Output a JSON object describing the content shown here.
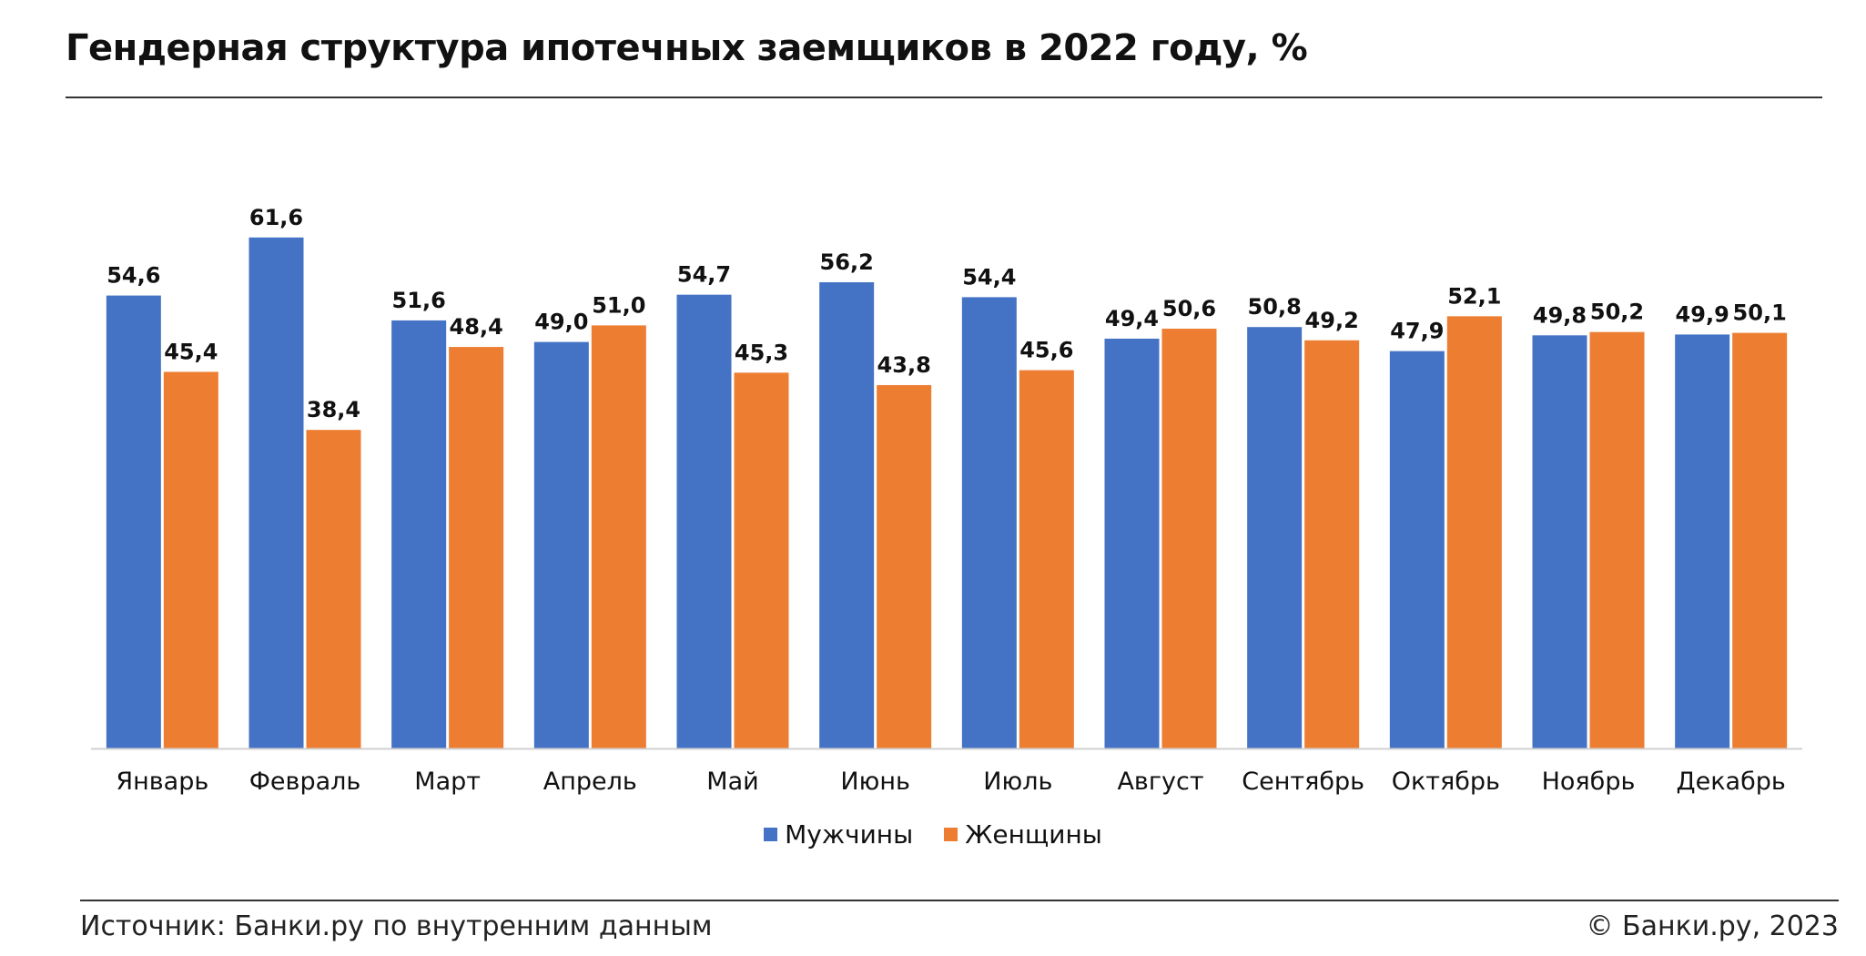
{
  "title": "Гендерная структура ипотечных заемщиков в 2022 году, %",
  "source": "Источник: Банки.ру по внутренним данным",
  "copyright": "© Банки.ру, 2023",
  "colors": {
    "men": "#4472C4",
    "women": "#ED7D31"
  },
  "legend": [
    {
      "name": "Мужчины",
      "color": "#4472C4"
    },
    {
      "name": "Женщины",
      "color": "#ED7D31"
    }
  ],
  "chart_data": {
    "type": "bar",
    "categories": [
      "Январь",
      "Февраль",
      "Март",
      "Апрель",
      "Май",
      "Июнь",
      "Июль",
      "Август",
      "Сентябрь",
      "Октябрь",
      "Ноябрь",
      "Декабрь"
    ],
    "series": [
      {
        "name": "Мужчины",
        "values": [
          54.6,
          61.6,
          51.6,
          49.0,
          54.7,
          56.2,
          54.4,
          49.4,
          50.8,
          47.9,
          49.8,
          49.9
        ],
        "labels": [
          "54,6",
          "61,6",
          "51,6",
          "49,0",
          "54,7",
          "56,2",
          "54,4",
          "49,4",
          "50,8",
          "47,9",
          "49,8",
          "49,9"
        ]
      },
      {
        "name": "Женщины",
        "values": [
          45.4,
          38.4,
          48.4,
          51.0,
          45.3,
          43.8,
          45.6,
          50.6,
          49.2,
          52.1,
          50.2,
          50.1
        ],
        "labels": [
          "45,4",
          "38,4",
          "48,4",
          "51,0",
          "45,3",
          "43,8",
          "45,6",
          "50,6",
          "49,2",
          "52,1",
          "50,2",
          "50,1"
        ]
      }
    ],
    "title": "Гендерная структура ипотечных заемщиков в 2022 году, %",
    "xlabel": "",
    "ylabel": "",
    "ylim": [
      0,
      65
    ],
    "grid": false,
    "legend_position": "bottom"
  }
}
